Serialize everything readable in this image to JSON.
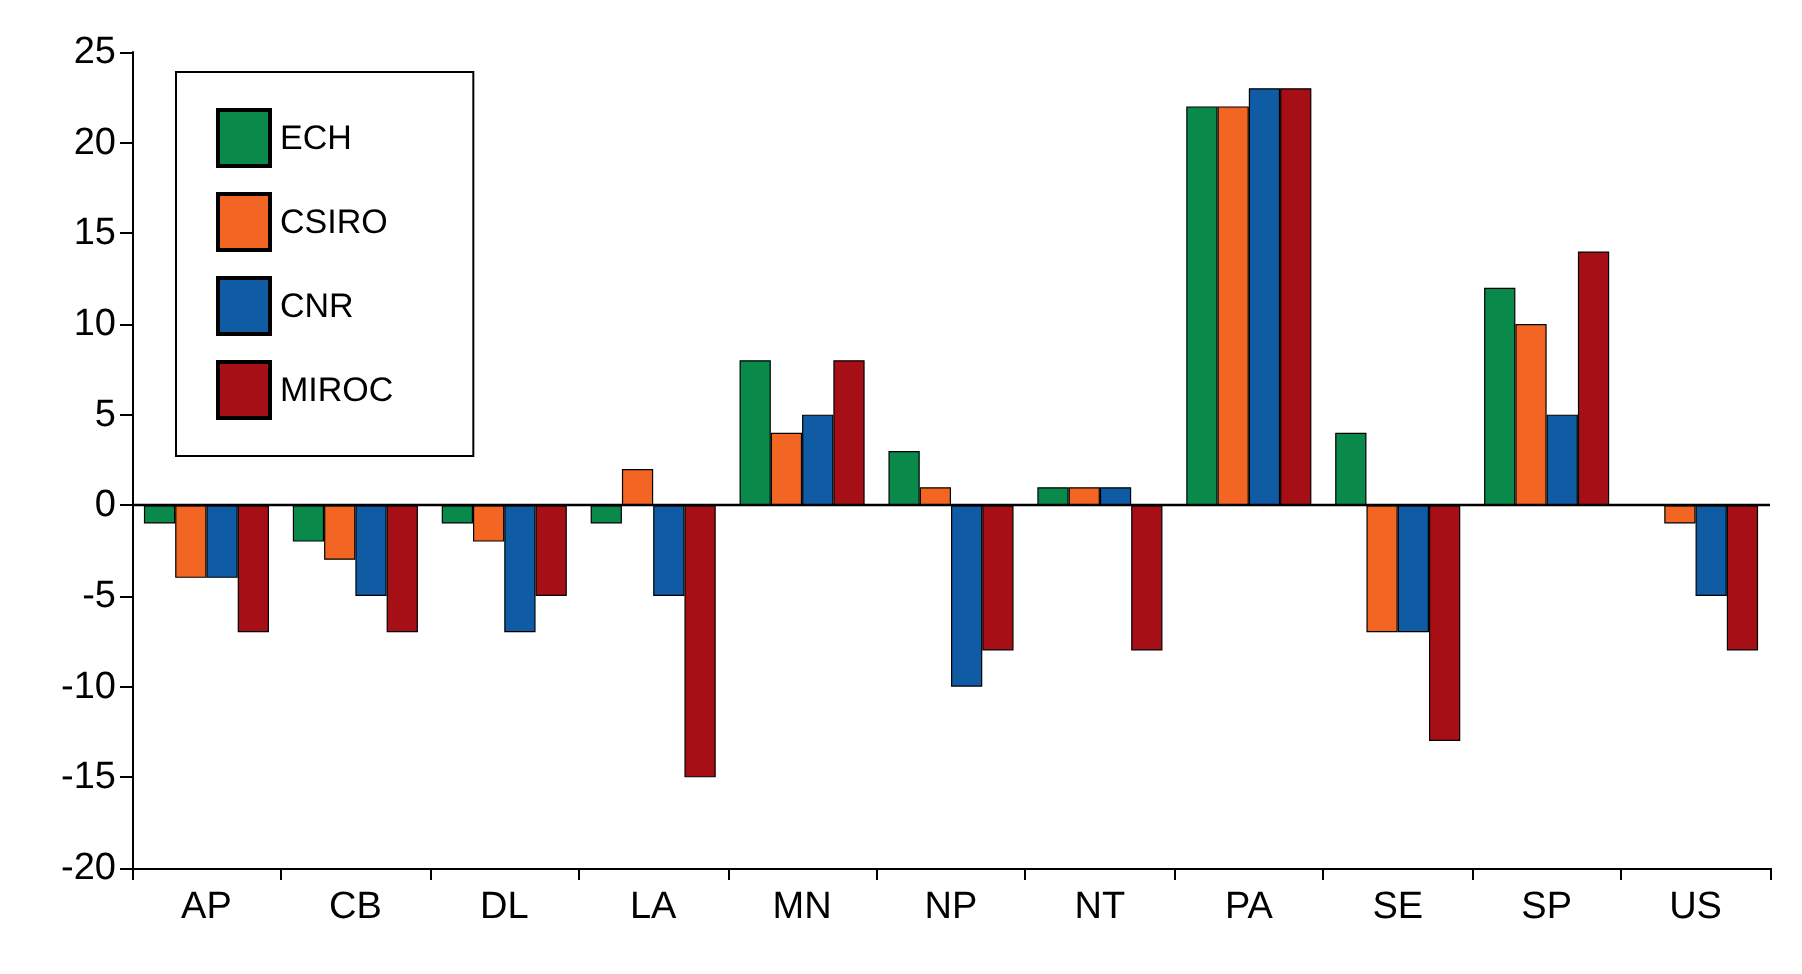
{
  "chart_data": {
    "type": "bar",
    "categories": [
      "AP",
      "CB",
      "DL",
      "LA",
      "MN",
      "NP",
      "NT",
      "PA",
      "SE",
      "SP",
      "US"
    ],
    "series": [
      {
        "name": "ECH",
        "color": "#0a8a4a",
        "values": [
          -1,
          -2,
          -1,
          -1,
          8,
          3,
          1,
          22,
          4,
          12,
          0
        ]
      },
      {
        "name": "CSIRO",
        "color": "#f26522",
        "values": [
          -4,
          -3,
          -2,
          2,
          4,
          1,
          1,
          22,
          -7,
          10,
          -1
        ]
      },
      {
        "name": "CNR",
        "color": "#0f5ba4",
        "values": [
          -4,
          -5,
          -7,
          -5,
          5,
          -10,
          1,
          23,
          -7,
          5,
          -5
        ]
      },
      {
        "name": "MIROC",
        "color": "#a50f15",
        "values": [
          -7,
          -7,
          -5,
          -15,
          8,
          -8,
          -8,
          23,
          -13,
          14,
          -8
        ]
      }
    ],
    "ylim": [
      -20,
      25
    ],
    "yticks": [
      -20,
      -15,
      -10,
      -5,
      0,
      5,
      10,
      15,
      20,
      25
    ],
    "ref_lines": [
      {
        "axis": "y",
        "value": 0,
        "color": "#000000"
      }
    ],
    "grid": false,
    "legend": "top left"
  }
}
